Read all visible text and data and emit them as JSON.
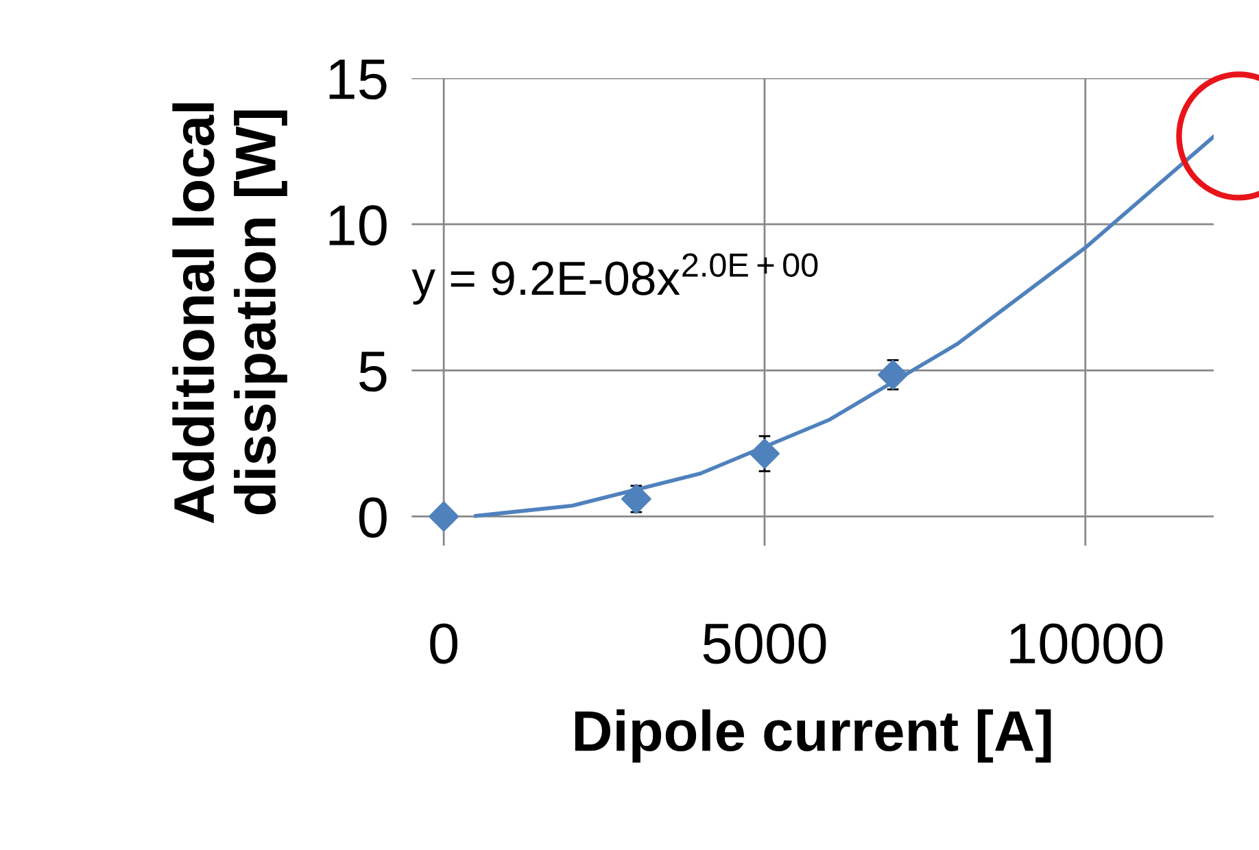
{
  "chart_data": {
    "type": "scatter",
    "xlabel": "Dipole current [A]",
    "ylabel": "Additional local\ndissipation [W]",
    "xlim": [
      -500,
      12000
    ],
    "xticks": [
      0,
      5000,
      10000
    ],
    "ylim": [
      -1,
      15
    ],
    "yticks": [
      0,
      5,
      10,
      15
    ],
    "grid": true,
    "series": [
      {
        "marker": "diamond",
        "color": "#4f81bd",
        "x": [
          0,
          3000,
          5000,
          7000
        ],
        "values": [
          0,
          0.6,
          2.15,
          4.85
        ],
        "errors": [
          null,
          0.45,
          0.6,
          0.5
        ]
      },
      {
        "type": "line",
        "marker": "none",
        "color": "#4f81bd",
        "x": [
          500,
          2000,
          4000,
          6000,
          8000,
          10000,
          12000
        ],
        "values": [
          0.02,
          0.37,
          1.47,
          3.3,
          5.9,
          9.2,
          13
        ]
      }
    ],
    "annotations": [
      "y = 9.2E-08x$^{2.0E+00}$"
    ]
  }
}
